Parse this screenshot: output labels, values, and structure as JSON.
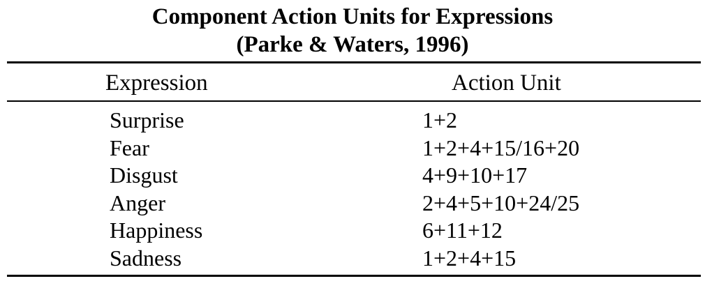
{
  "title": {
    "line1": "Component Action Units for Expressions",
    "line2": "(Parke & Waters, 1996)"
  },
  "headers": {
    "expression": "Expression",
    "action_unit": "Action Unit"
  },
  "rows": [
    {
      "expression": "Surprise",
      "action_unit": "1+2"
    },
    {
      "expression": "Fear",
      "action_unit": "1+2+4+15/16+20"
    },
    {
      "expression": "Disgust",
      "action_unit": "4+9+10+17"
    },
    {
      "expression": "Anger",
      "action_unit": "2+4+5+10+24/25"
    },
    {
      "expression": "Happiness",
      "action_unit": "6+11+12"
    },
    {
      "expression": "Sadness",
      "action_unit": "1+2+4+15"
    }
  ]
}
